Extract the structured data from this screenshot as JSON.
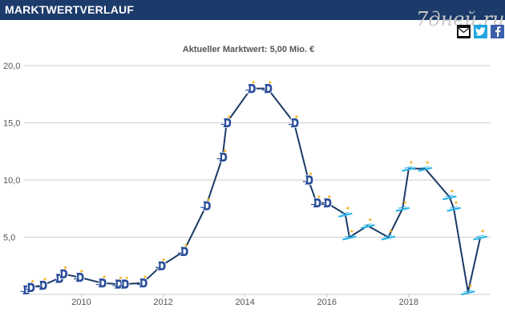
{
  "header": {
    "title": "MARKTWERTVERLAUF"
  },
  "watermark": "7дней.ru",
  "share": {
    "mail_icon": "envelope-icon",
    "twitter_icon": "twitter-bird-icon",
    "facebook_icon": "facebook-f-icon"
  },
  "colors": {
    "header_bg": "#1c3b6b",
    "line": "#1b3a66",
    "grid": "#cccccc",
    "marker_club1": "#2a4d9b",
    "marker_club2": "#28b4e8",
    "star": "#f2b01e"
  },
  "chart_data": {
    "type": "line",
    "title": "Aktueller Marktwert: 5,00 Mio. €",
    "xlabel": "",
    "ylabel": "",
    "ylim": [
      0,
      20
    ],
    "xlim": [
      2008.6,
      2020.0
    ],
    "yticks": [
      {
        "value": 20,
        "label": "20,0"
      },
      {
        "value": 15,
        "label": "15,0"
      },
      {
        "value": 10,
        "label": "10,0"
      },
      {
        "value": 5,
        "label": "5,0"
      }
    ],
    "xticks": [
      {
        "value": 2010,
        "label": "2010"
      },
      {
        "value": 2012,
        "label": "2012"
      },
      {
        "value": 2014,
        "label": "2014"
      },
      {
        "value": 2016,
        "label": "2016"
      },
      {
        "value": 2018,
        "label": "2018"
      }
    ],
    "grid": true,
    "legend": "none",
    "series": [
      {
        "points": [
          {
            "x": 2008.65,
            "y": 0.4,
            "club": "club1"
          },
          {
            "x": 2008.75,
            "y": 0.6,
            "club": "club1"
          },
          {
            "x": 2009.05,
            "y": 0.8,
            "club": "club1"
          },
          {
            "x": 2009.45,
            "y": 1.4,
            "club": "club1"
          },
          {
            "x": 2009.55,
            "y": 1.8,
            "club": "club1"
          },
          {
            "x": 2009.95,
            "y": 1.5,
            "club": "club1"
          },
          {
            "x": 2010.5,
            "y": 1.0,
            "club": "club1"
          },
          {
            "x": 2010.9,
            "y": 0.9,
            "club": "club1"
          },
          {
            "x": 2011.05,
            "y": 0.9,
            "club": "club1"
          },
          {
            "x": 2011.5,
            "y": 1.0,
            "club": "club1"
          },
          {
            "x": 2011.95,
            "y": 2.5,
            "club": "club1"
          },
          {
            "x": 2012.5,
            "y": 3.75,
            "club": "club1"
          },
          {
            "x": 2013.05,
            "y": 7.75,
            "club": "club1"
          },
          {
            "x": 2013.45,
            "y": 12.0,
            "club": "club1"
          },
          {
            "x": 2013.55,
            "y": 15.0,
            "club": "club1"
          },
          {
            "x": 2014.15,
            "y": 18.0,
            "club": "club1"
          },
          {
            "x": 2014.55,
            "y": 18.0,
            "club": "club1"
          },
          {
            "x": 2015.2,
            "y": 15.0,
            "club": "club1"
          },
          {
            "x": 2015.55,
            "y": 10.0,
            "club": "club1"
          },
          {
            "x": 2015.75,
            "y": 8.0,
            "club": "club1"
          },
          {
            "x": 2016.0,
            "y": 8.0,
            "club": "club1"
          },
          {
            "x": 2016.45,
            "y": 7.0,
            "club": "club2"
          },
          {
            "x": 2016.55,
            "y": 5.0,
            "club": "club2"
          },
          {
            "x": 2017.0,
            "y": 6.0,
            "club": "club2"
          },
          {
            "x": 2017.5,
            "y": 5.0,
            "club": "club2"
          },
          {
            "x": 2017.85,
            "y": 7.5,
            "club": "club2"
          },
          {
            "x": 2018.0,
            "y": 11.0,
            "club": "club2"
          },
          {
            "x": 2018.4,
            "y": 11.0,
            "club": "club2"
          },
          {
            "x": 2019.0,
            "y": 8.5,
            "club": "club2"
          },
          {
            "x": 2019.1,
            "y": 7.5,
            "club": "club2"
          },
          {
            "x": 2019.45,
            "y": 0.2,
            "club": "club2"
          },
          {
            "x": 2019.75,
            "y": 5.0,
            "club": "club2"
          }
        ]
      }
    ]
  }
}
